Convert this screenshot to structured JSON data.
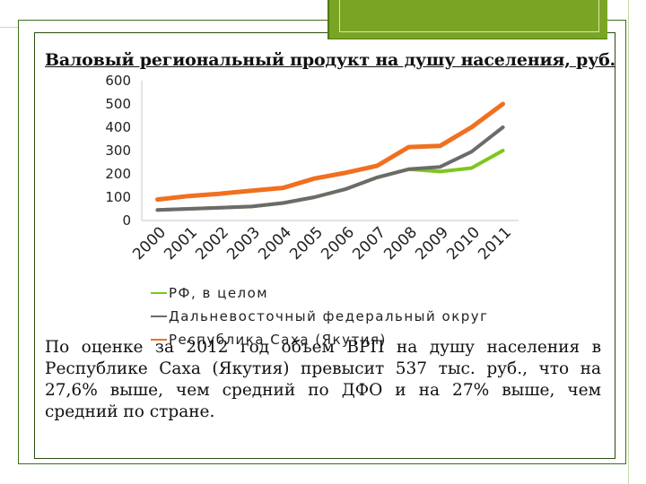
{
  "slide": {
    "title": "Валовый региональный продукт на душу населения, руб.",
    "note": "По оценке за 2012 год объем ВРП на душу населения в Республике Саха (Якутия) превысит 537 тыс. руб., что на 27,6% выше, чем средний по ДФО и на 27% выше, чем средний по стране.",
    "colors": {
      "frame": "#3f6f1a",
      "accent": "#7aa524"
    }
  },
  "chart_data": {
    "type": "line",
    "title": "",
    "xlabel": "",
    "ylabel": "",
    "x": [
      "2000",
      "2001",
      "2002",
      "2003",
      "2004",
      "2005",
      "2006",
      "2007",
      "2008",
      "2009",
      "2010",
      "2011"
    ],
    "ylim": [
      0,
      600
    ],
    "yticks": [
      0,
      100,
      200,
      300,
      400,
      500,
      600
    ],
    "grid": false,
    "legend_position": "bottom",
    "series": [
      {
        "name": "РФ, в целом",
        "color": "#7dc71f",
        "values": [
          45,
          50,
          55,
          60,
          75,
          100,
          135,
          185,
          220,
          210,
          225,
          300
        ]
      },
      {
        "name": "Дальневосточный федеральный округ",
        "color": "#6b6b6b",
        "values": [
          45,
          50,
          55,
          60,
          75,
          100,
          135,
          185,
          220,
          230,
          295,
          400
        ]
      },
      {
        "name": "Республика Саха (Якутия)",
        "color": "#f07020",
        "values": [
          90,
          105,
          115,
          128,
          140,
          180,
          205,
          235,
          315,
          320,
          400,
          500
        ]
      }
    ]
  }
}
